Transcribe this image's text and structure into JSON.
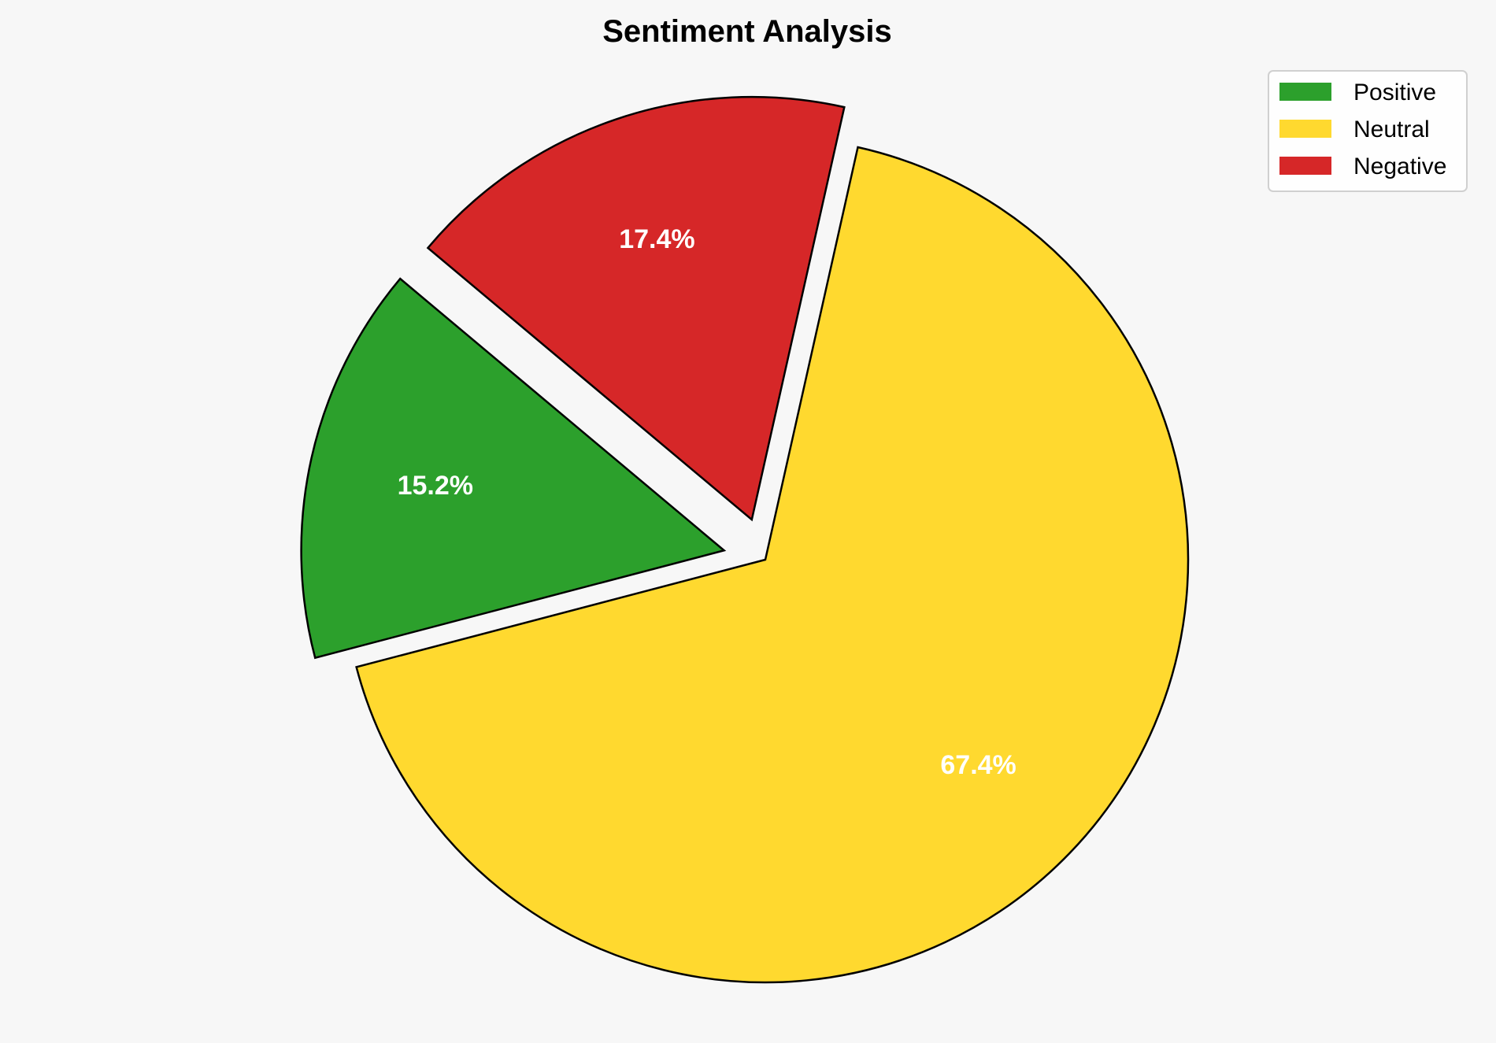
{
  "chart_data": {
    "type": "pie",
    "title": "Sentiment Analysis",
    "categories": [
      "Positive",
      "Neutral",
      "Negative"
    ],
    "values": [
      15.2,
      67.4,
      17.4
    ],
    "labels": [
      "15.2%",
      "67.4%",
      "17.4%"
    ],
    "colors": [
      "#2ca02c",
      "#ffd92f",
      "#d62728"
    ],
    "explode": [
      0.1,
      0,
      0.1
    ],
    "start_angle": 140,
    "direction": "counterclockwise",
    "edge_color": "#000000",
    "legend": {
      "placement": "top-right",
      "entries": [
        "Positive",
        "Neutral",
        "Negative"
      ]
    }
  }
}
